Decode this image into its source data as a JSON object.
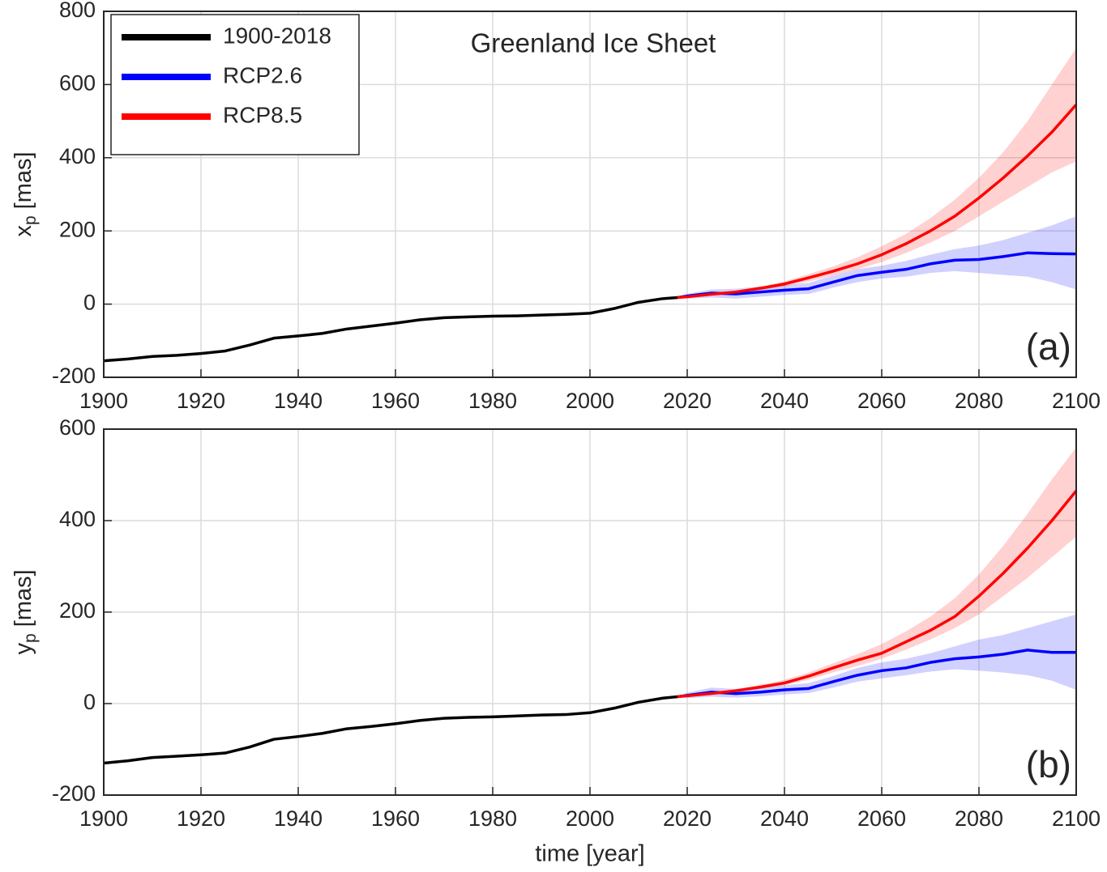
{
  "chart_data": [
    {
      "type": "line",
      "title": "Greenland Ice Sheet",
      "panel_label": "(a)",
      "ylabel": [
        "x",
        "p",
        "[mas]"
      ],
      "xlim": [
        1900,
        2100
      ],
      "xticks": [
        1900,
        1920,
        1940,
        1960,
        1980,
        2000,
        2020,
        2040,
        2060,
        2080,
        2100
      ],
      "ylim": [
        -200,
        800
      ],
      "yticks": [
        -200,
        0,
        200,
        400,
        600,
        800
      ],
      "grid": true,
      "legend": "upper left",
      "series": [
        {
          "name": "1900-2018",
          "color": "#000000",
          "x": [
            1900,
            1905,
            1910,
            1915,
            1920,
            1925,
            1930,
            1935,
            1940,
            1945,
            1950,
            1955,
            1960,
            1965,
            1970,
            1975,
            1980,
            1985,
            1990,
            1995,
            2000,
            2005,
            2010,
            2015,
            2018
          ],
          "values": [
            -155,
            -150,
            -143,
            -140,
            -135,
            -128,
            -112,
            -93,
            -87,
            -80,
            -68,
            -60,
            -52,
            -43,
            -37,
            -35,
            -33,
            -32,
            -30,
            -28,
            -25,
            -12,
            5,
            15,
            18
          ]
        },
        {
          "name": "RCP2.6",
          "color": "#0000ff",
          "x": [
            2018,
            2020,
            2025,
            2030,
            2035,
            2040,
            2045,
            2050,
            2055,
            2060,
            2065,
            2070,
            2075,
            2080,
            2085,
            2090,
            2095,
            2100
          ],
          "values": [
            18,
            22,
            30,
            28,
            33,
            38,
            42,
            60,
            78,
            87,
            95,
            110,
            120,
            122,
            130,
            140,
            138,
            137
          ],
          "lower": [
            18,
            15,
            18,
            15,
            20,
            25,
            28,
            45,
            60,
            70,
            75,
            85,
            90,
            85,
            80,
            75,
            60,
            40
          ],
          "upper": [
            18,
            28,
            40,
            42,
            48,
            52,
            58,
            78,
            95,
            105,
            118,
            135,
            150,
            160,
            175,
            195,
            215,
            240
          ]
        },
        {
          "name": "RCP8.5",
          "color": "#ff0000",
          "x": [
            2018,
            2020,
            2025,
            2030,
            2035,
            2040,
            2045,
            2050,
            2055,
            2060,
            2065,
            2070,
            2075,
            2080,
            2085,
            2090,
            2095,
            2100
          ],
          "values": [
            18,
            20,
            27,
            33,
            43,
            55,
            72,
            90,
            110,
            135,
            165,
            200,
            240,
            290,
            345,
            405,
            470,
            545
          ],
          "lower": [
            18,
            19,
            25,
            30,
            38,
            48,
            62,
            78,
            95,
            115,
            140,
            168,
            200,
            240,
            280,
            320,
            360,
            390
          ],
          "upper": [
            18,
            21,
            30,
            37,
            48,
            62,
            82,
            103,
            128,
            158,
            192,
            235,
            285,
            345,
            415,
            500,
            600,
            700
          ]
        }
      ]
    },
    {
      "type": "line",
      "panel_label": "(b)",
      "ylabel": [
        "y",
        "p",
        "[mas]"
      ],
      "xlabel": "time [year]",
      "xlim": [
        1900,
        2100
      ],
      "xticks": [
        1900,
        1920,
        1940,
        1960,
        1980,
        2000,
        2020,
        2040,
        2060,
        2080,
        2100
      ],
      "ylim": [
        -200,
        600
      ],
      "yticks": [
        -200,
        0,
        200,
        400,
        600
      ],
      "grid": true,
      "series": [
        {
          "color": "#000000",
          "x": [
            1900,
            1905,
            1910,
            1915,
            1920,
            1925,
            1930,
            1935,
            1940,
            1945,
            1950,
            1955,
            1960,
            1965,
            1970,
            1975,
            1980,
            1985,
            1990,
            1995,
            2000,
            2005,
            2010,
            2015,
            2018
          ],
          "values": [
            -130,
            -125,
            -118,
            -115,
            -112,
            -108,
            -95,
            -78,
            -72,
            -65,
            -55,
            -50,
            -44,
            -37,
            -32,
            -30,
            -29,
            -27,
            -25,
            -24,
            -20,
            -10,
            3,
            12,
            15
          ]
        },
        {
          "color": "#0000ff",
          "x": [
            2018,
            2020,
            2025,
            2030,
            2035,
            2040,
            2045,
            2050,
            2055,
            2060,
            2065,
            2070,
            2075,
            2080,
            2085,
            2090,
            2095,
            2100
          ],
          "values": [
            15,
            18,
            25,
            22,
            25,
            30,
            33,
            48,
            62,
            72,
            78,
            90,
            98,
            102,
            108,
            117,
            112,
            112
          ],
          "lower": [
            15,
            12,
            15,
            13,
            16,
            20,
            23,
            35,
            48,
            55,
            62,
            70,
            75,
            72,
            68,
            62,
            50,
            30
          ],
          "upper": [
            15,
            24,
            35,
            32,
            36,
            40,
            45,
            60,
            78,
            90,
            98,
            110,
            125,
            140,
            150,
            165,
            180,
            195
          ]
        },
        {
          "color": "#ff0000",
          "x": [
            2018,
            2020,
            2025,
            2030,
            2035,
            2040,
            2045,
            2050,
            2055,
            2060,
            2065,
            2070,
            2075,
            2080,
            2085,
            2090,
            2095,
            2100
          ],
          "values": [
            15,
            17,
            22,
            28,
            36,
            45,
            60,
            78,
            95,
            110,
            135,
            160,
            190,
            235,
            285,
            340,
            400,
            465
          ],
          "lower": [
            15,
            16,
            20,
            25,
            32,
            40,
            52,
            68,
            82,
            98,
            118,
            140,
            165,
            195,
            235,
            275,
            320,
            365
          ],
          "upper": [
            15,
            18,
            25,
            32,
            41,
            52,
            68,
            88,
            108,
            130,
            158,
            190,
            230,
            282,
            345,
            415,
            490,
            560
          ]
        }
      ]
    }
  ]
}
